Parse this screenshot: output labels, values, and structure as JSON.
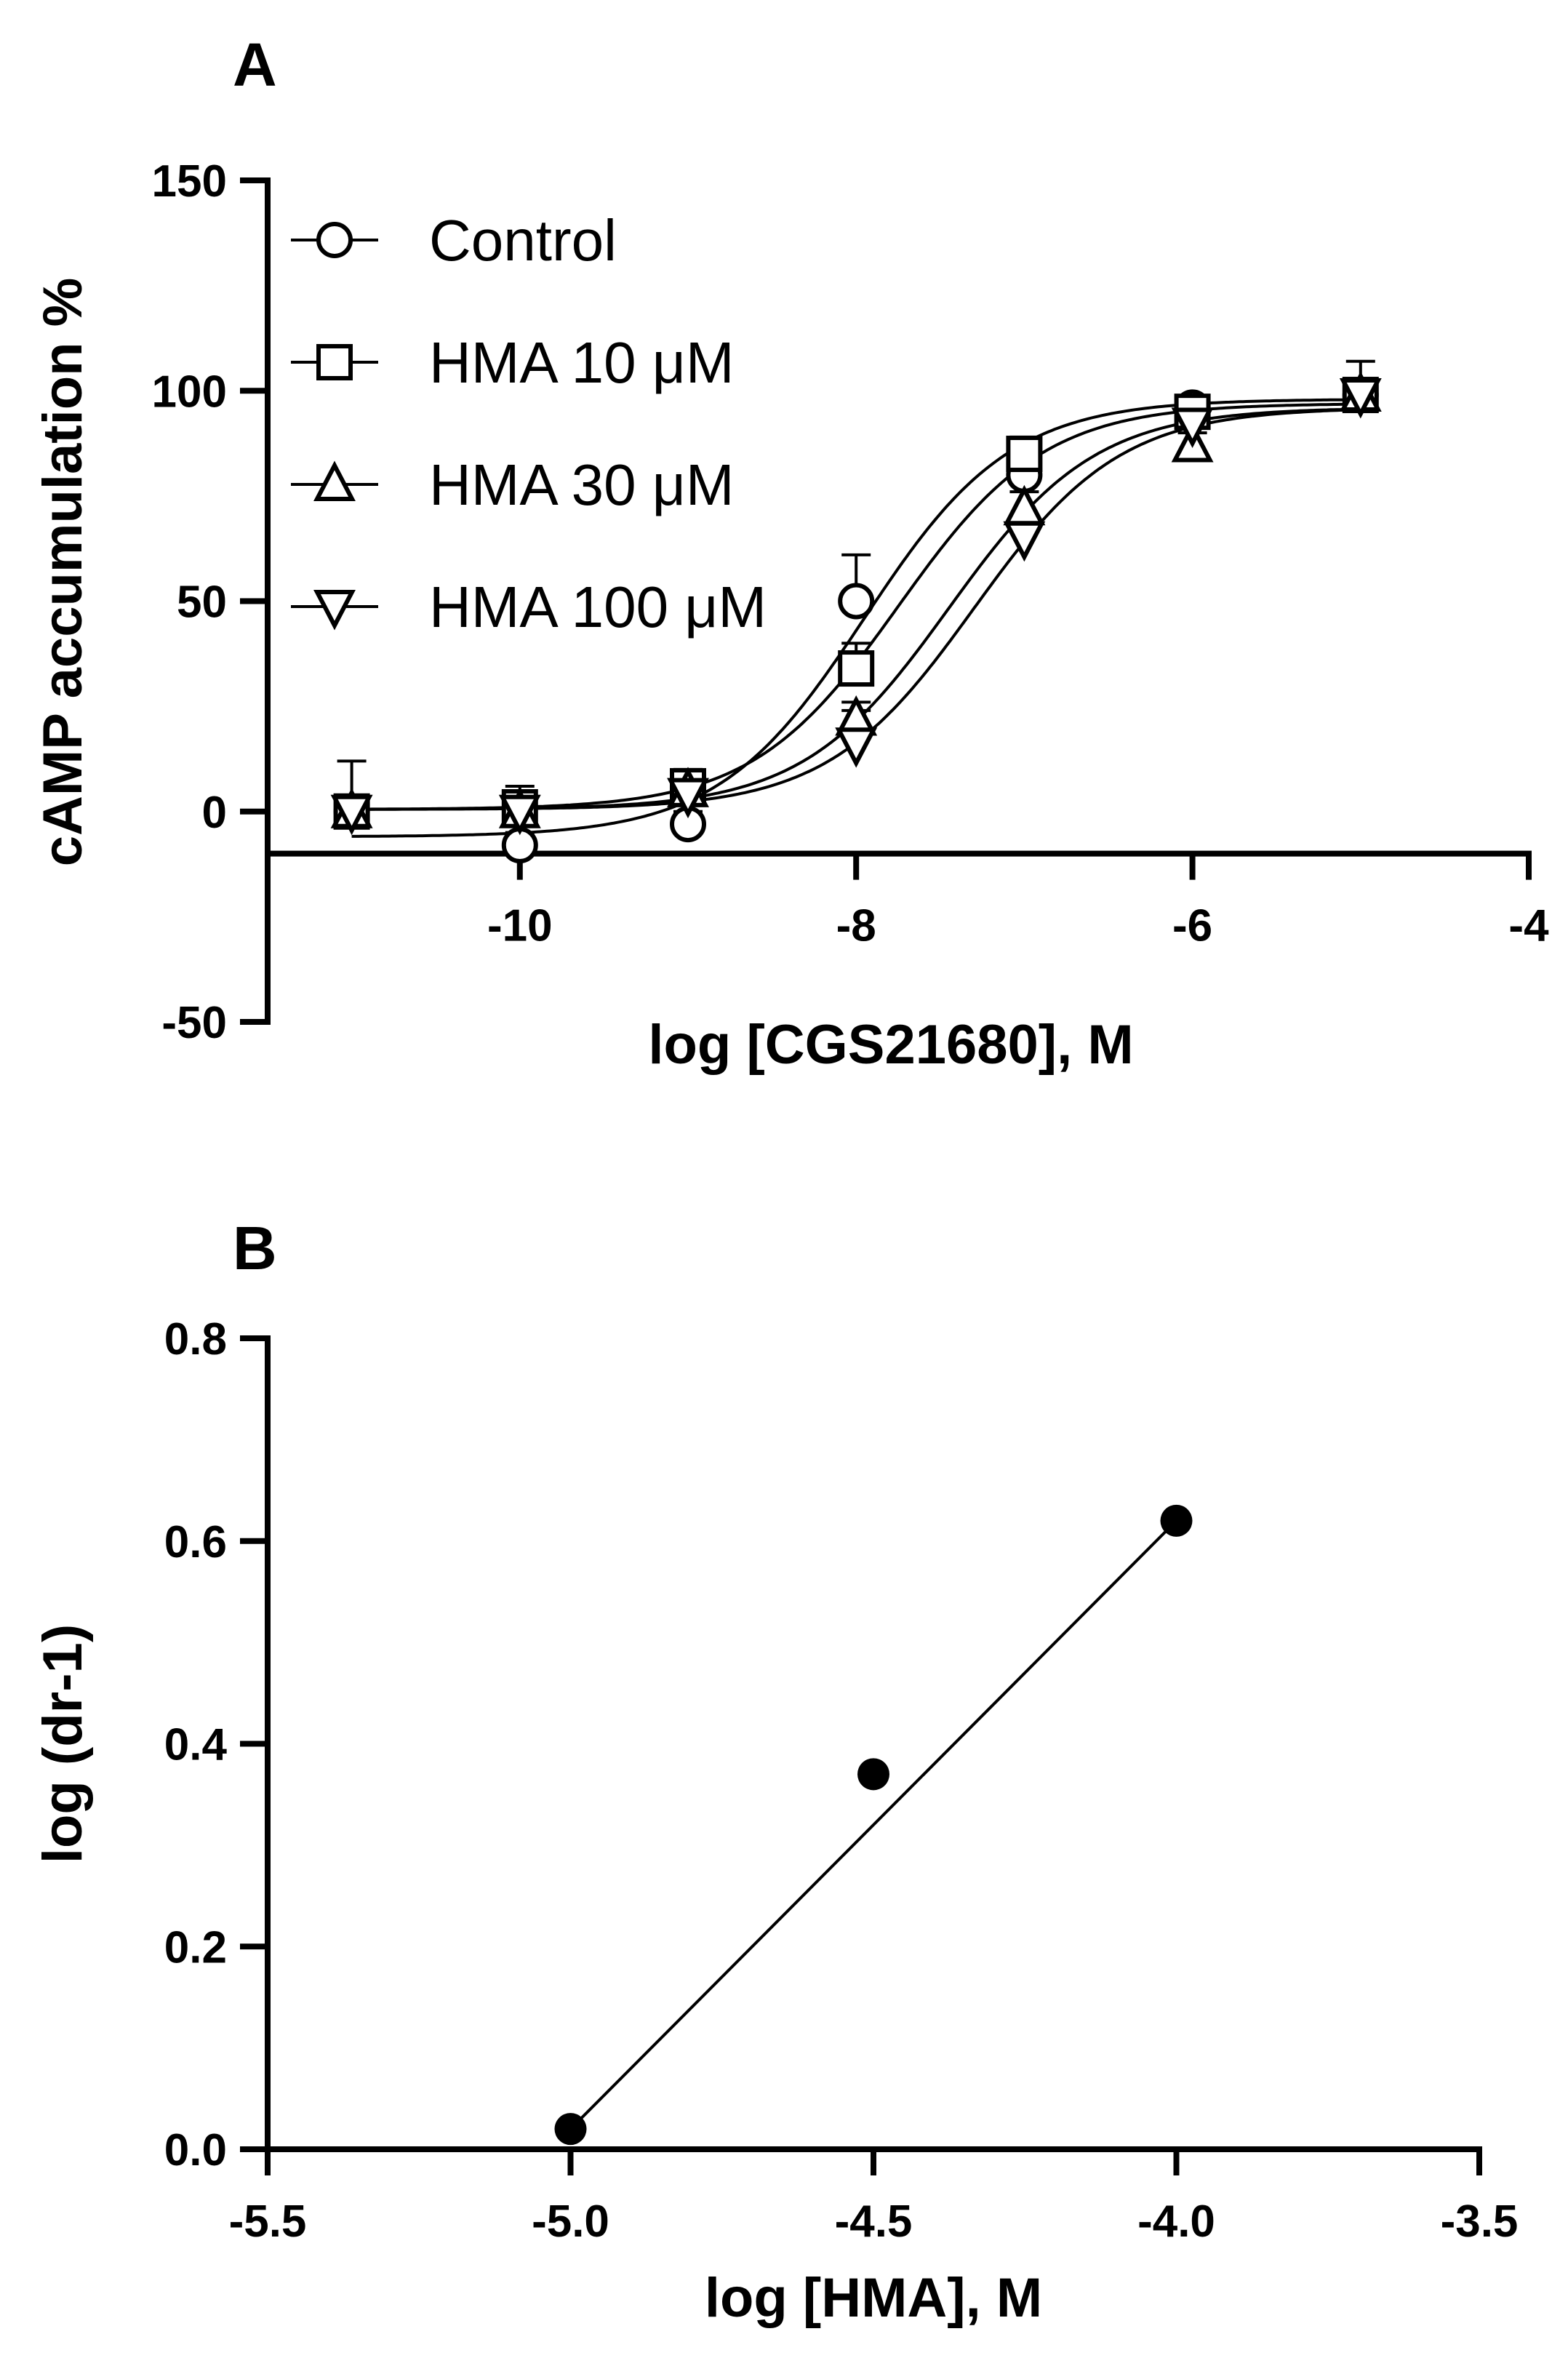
{
  "chart_data": [
    {
      "panel": "A",
      "type": "line",
      "xlabel": "log [CGS21680], M",
      "ylabel": "cAMP accumulation %",
      "xlim": [
        -11.5,
        -4
      ],
      "ylim": [
        -50,
        150
      ],
      "xticks": [
        -10,
        -8,
        -6,
        -4
      ],
      "xtick_labels": [
        "-10",
        "-8",
        "-6",
        "-4"
      ],
      "yticks": [
        -50,
        0,
        50,
        100,
        150
      ],
      "ytick_labels": [
        "-50",
        "0",
        "50",
        "100",
        "150"
      ],
      "x_axis_crosses_y_at": -10,
      "legend": {
        "placement": "top-left"
      },
      "series": [
        {
          "name": "Control",
          "marker": "circle",
          "x": [
            -11,
            -10,
            -9,
            -8,
            -7,
            -6,
            -5
          ],
          "y": [
            0,
            -8,
            -3,
            50,
            80,
            96,
            99
          ],
          "err": [
            12,
            3,
            3,
            11,
            4,
            2,
            8
          ],
          "fit": {
            "bottom": -6,
            "top": 98,
            "logEC50": -7.95,
            "hill": 1
          }
        },
        {
          "name": "HMA 10 μM",
          "marker": "square",
          "x": [
            -11,
            -10,
            -9,
            -8,
            -7,
            -6,
            -5
          ],
          "y": [
            0,
            1,
            6,
            34,
            85,
            95,
            99
          ],
          "err": [
            3,
            5,
            4,
            6,
            4,
            2,
            3
          ],
          "fit": {
            "bottom": 0.5,
            "top": 97,
            "logEC50": -7.75,
            "hill": 1
          }
        },
        {
          "name": "HMA 30 μM",
          "marker": "triangle-up",
          "x": [
            -11,
            -10,
            -9,
            -8,
            -7,
            -6,
            -5
          ],
          "y": [
            0,
            0,
            5,
            22,
            72,
            87,
            99
          ],
          "err": [
            3,
            3,
            3,
            4,
            4,
            3,
            3
          ],
          "fit": {
            "bottom": 0.5,
            "top": 96,
            "logEC50": -7.45,
            "hill": 1
          }
        },
        {
          "name": "HMA 100 μM",
          "marker": "triangle-down",
          "x": [
            -11,
            -10,
            -9,
            -8,
            -7,
            -6,
            -5
          ],
          "y": [
            0,
            0,
            4,
            16,
            65,
            92,
            99
          ],
          "err": [
            3,
            3,
            3,
            8,
            4,
            3,
            3
          ],
          "fit": {
            "bottom": 0.5,
            "top": 96,
            "logEC50": -7.3,
            "hill": 1
          }
        }
      ]
    },
    {
      "panel": "B",
      "type": "scatter",
      "xlabel": "log [HMA], M",
      "ylabel": "log (dr-1)",
      "xlim": [
        -5.5,
        -3.5
      ],
      "ylim": [
        0,
        0.8
      ],
      "xticks": [
        -5.5,
        -5.0,
        -4.5,
        -4.0,
        -3.5
      ],
      "xtick_labels": [
        "-5.5",
        "-5.0",
        "-4.5",
        "-4.0",
        "-3.5"
      ],
      "yticks": [
        0.0,
        0.2,
        0.4,
        0.6,
        0.8
      ],
      "ytick_labels": [
        "0.0",
        "0.2",
        "0.4",
        "0.6",
        "0.8"
      ],
      "x": [
        -5.0,
        -4.5,
        -4.0
      ],
      "y": [
        0.02,
        0.37,
        0.62
      ],
      "fit": {
        "type": "linear",
        "x_range": [
          -5.0,
          -4.0
        ],
        "y_range": [
          0.02,
          0.62
        ]
      }
    }
  ]
}
